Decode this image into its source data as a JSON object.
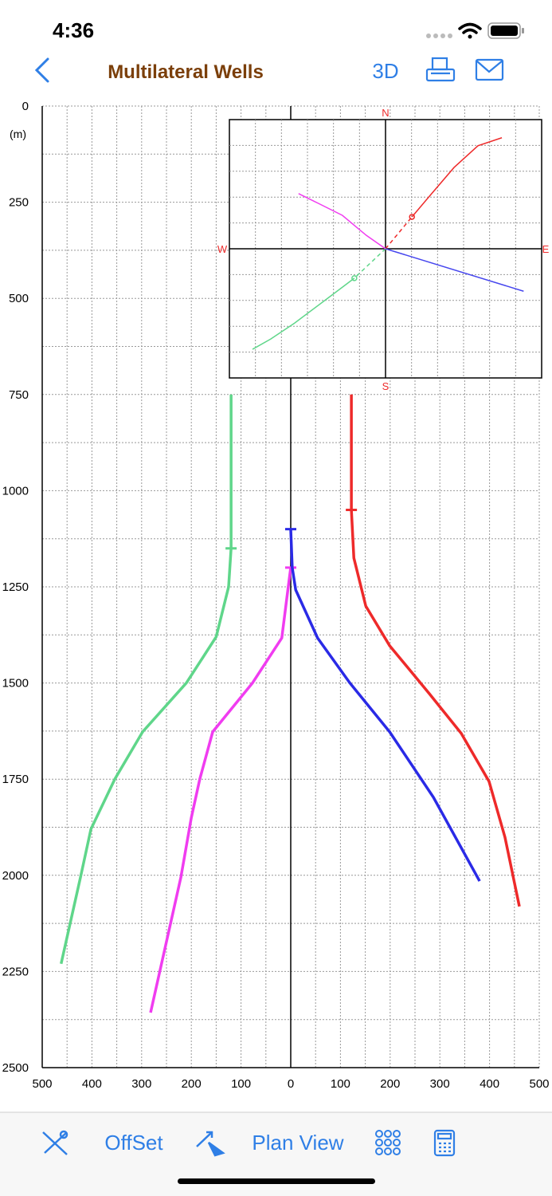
{
  "status_bar": {
    "time": "4:36"
  },
  "nav": {
    "title": "Multilateral Wells",
    "button": "3D"
  },
  "toolbar": {
    "offset": "OffSet",
    "plan_view": "Plan View"
  },
  "chart_data": {
    "type": "line",
    "y_unit_label": "(m)",
    "xlim": [
      -500,
      500
    ],
    "ylim": [
      0,
      2500
    ],
    "y_reversed": true,
    "grid": true,
    "minor_grid": true,
    "xticks": [
      {
        "value": -500,
        "label": "500"
      },
      {
        "value": -400,
        "label": "400"
      },
      {
        "value": -300,
        "label": "300"
      },
      {
        "value": -200,
        "label": "200"
      },
      {
        "value": -100,
        "label": "100"
      },
      0,
      100,
      200,
      300,
      400,
      500
    ],
    "yticks": [
      0,
      250,
      500,
      750,
      1000,
      1250,
      1500,
      1750,
      2000,
      2250,
      2500
    ],
    "series": [
      {
        "color": "#5fd68a",
        "kickoff": 1150,
        "offset": [
          -120,
          -120,
          -125,
          -150,
          -210,
          -298,
          -354,
          -402,
          -423,
          -462
        ],
        "depth": [
          750,
          1150,
          1250,
          1380,
          1500,
          1627,
          1750,
          1880,
          2005,
          2230
        ]
      },
      {
        "color": "#f03cf0",
        "kickoff": 1200,
        "offset": [
          0,
          -5,
          -18,
          -77,
          -157,
          -183,
          -200,
          -221,
          -282
        ],
        "depth": [
          1200,
          1250,
          1383,
          1500,
          1627,
          1750,
          1850,
          2005,
          2357
        ]
      },
      {
        "color": "#2a2ae6",
        "kickoff": 1100,
        "offset": [
          0,
          3,
          10,
          54,
          119,
          199,
          287,
          380
        ],
        "depth": [
          1100,
          1200,
          1258,
          1383,
          1500,
          1627,
          1797,
          2015
        ]
      },
      {
        "color": "#ee2a2a",
        "kickoff": 1050,
        "offset": [
          122,
          122,
          127,
          151,
          199,
          279,
          343,
          399,
          431,
          460
        ],
        "depth": [
          750,
          1050,
          1175,
          1300,
          1403,
          1528,
          1631,
          1756,
          1901,
          2081
        ]
      }
    ]
  },
  "plan_view": {
    "labels": {
      "n": "N",
      "s": "S",
      "w": "W",
      "e": "E"
    },
    "series": [
      {
        "color": "#ee2a2a",
        "lead": "dashed",
        "east": [
          0,
          73,
          123,
          189,
          255,
          321
        ],
        "north": [
          0,
          88,
          147,
          224,
          284,
          306
        ]
      },
      {
        "color": "#5fd68a",
        "lead": "dashed",
        "east": [
          0,
          -86,
          -163,
          -251,
          -317,
          -367
        ],
        "north": [
          0,
          -81,
          -139,
          -205,
          -249,
          -277
        ]
      },
      {
        "color": "#f03cf0",
        "lead": "solid",
        "east": [
          0,
          -53,
          -119,
          -185,
          -240
        ],
        "north": [
          0,
          37,
          92,
          125,
          152
        ]
      },
      {
        "color": "#4646ee",
        "lead": "solid",
        "east": [
          0,
          381
        ],
        "north": [
          0,
          -117
        ]
      }
    ]
  }
}
